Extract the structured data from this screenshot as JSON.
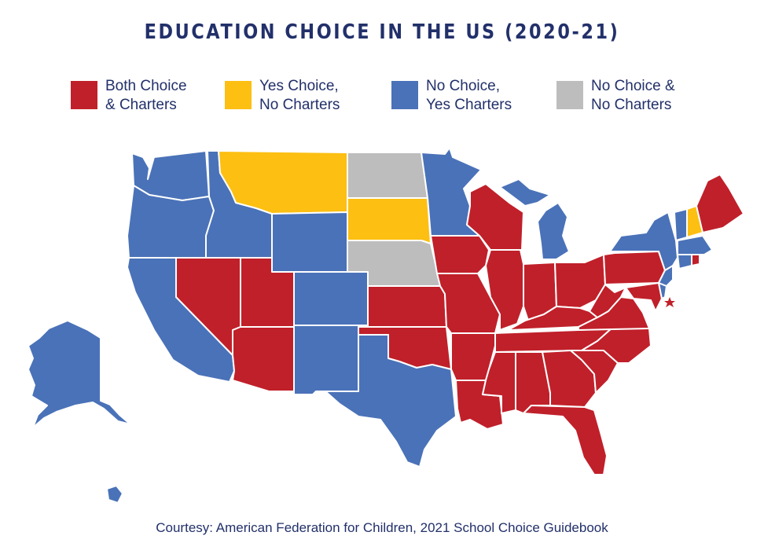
{
  "title": "EDUCATION CHOICE IN THE US (2020-21)",
  "legend": [
    {
      "label": "Both Choice\n& Charters",
      "color": "#c0202a"
    },
    {
      "label": "Yes Choice,\nNo Charters",
      "color": "#fcbf12"
    },
    {
      "label": "No Choice,\nYes Charters",
      "color": "#4a72b8"
    },
    {
      "label": "No Choice &\nNo Charters",
      "color": "#bdbdbd"
    }
  ],
  "colors": {
    "both": "#c0202a",
    "choice_only": "#fcbf12",
    "charters_only": "#4a72b8",
    "neither": "#bdbdbd"
  },
  "footer": "Courtesy: American Federation for Children, 2021 School Choice Guidebook"
}
